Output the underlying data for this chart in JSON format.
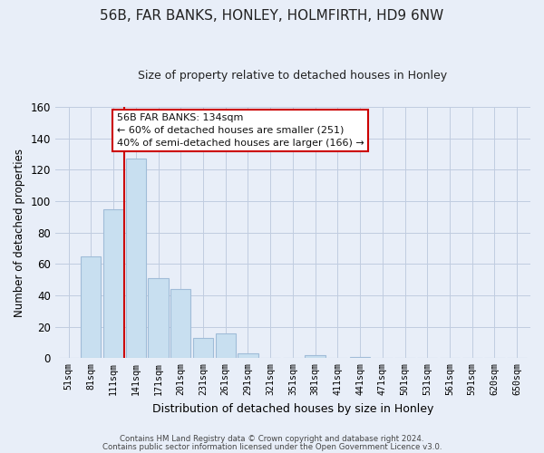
{
  "title": "56B, FAR BANKS, HONLEY, HOLMFIRTH, HD9 6NW",
  "subtitle": "Size of property relative to detached houses in Honley",
  "xlabel": "Distribution of detached houses by size in Honley",
  "ylabel": "Number of detached properties",
  "bar_labels": [
    "51sqm",
    "81sqm",
    "111sqm",
    "141sqm",
    "171sqm",
    "201sqm",
    "231sqm",
    "261sqm",
    "291sqm",
    "321sqm",
    "351sqm",
    "381sqm",
    "411sqm",
    "441sqm",
    "471sqm",
    "501sqm",
    "531sqm",
    "561sqm",
    "591sqm",
    "620sqm",
    "650sqm"
  ],
  "bar_values": [
    0,
    65,
    95,
    127,
    51,
    44,
    13,
    16,
    3,
    0,
    0,
    2,
    0,
    1,
    0,
    0,
    0,
    0,
    0,
    0,
    0
  ],
  "bar_color": "#c8dff0",
  "bar_edge_color": "#a0bcd8",
  "vline_color": "#cc0000",
  "ylim": [
    0,
    160
  ],
  "yticks": [
    0,
    20,
    40,
    60,
    80,
    100,
    120,
    140,
    160
  ],
  "annotation_title": "56B FAR BANKS: 134sqm",
  "annotation_line1": "← 60% of detached houses are smaller (251)",
  "annotation_line2": "40% of semi-detached houses are larger (166) →",
  "annotation_box_color": "#ffffff",
  "annotation_box_edge": "#cc0000",
  "footer_line1": "Contains HM Land Registry data © Crown copyright and database right 2024.",
  "footer_line2": "Contains public sector information licensed under the Open Government Licence v3.0.",
  "background_color": "#e8eef8",
  "plot_background": "#e8eef8",
  "grid_color": "#c0cce0"
}
